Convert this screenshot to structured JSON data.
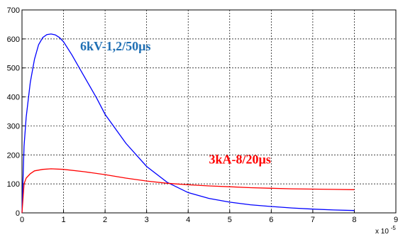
{
  "chart_data": {
    "type": "line",
    "xlim": [
      0,
      9
    ],
    "ylim": [
      0,
      700
    ],
    "x_ticks": [
      0,
      1,
      2,
      3,
      4,
      5,
      6,
      7,
      8,
      9
    ],
    "y_ticks": [
      0,
      100,
      200,
      300,
      400,
      500,
      600,
      700
    ],
    "x_tick_labels": [
      "0",
      "1",
      "2",
      "3",
      "4",
      "5",
      "6",
      "7",
      "8",
      "9"
    ],
    "y_tick_labels": [
      "0",
      "100",
      "200",
      "300",
      "400",
      "500",
      "600",
      "700"
    ],
    "x_multiplier_base": "x 10",
    "x_multiplier_exponent": "-5",
    "grid": true,
    "series": [
      {
        "color": "#0000ff",
        "x": [
          0,
          0.05,
          0.1,
          0.2,
          0.3,
          0.4,
          0.5,
          0.6,
          0.7,
          0.8,
          0.9,
          1.0,
          1.2,
          1.4,
          1.6,
          1.8,
          2.0,
          2.5,
          3.0,
          3.5,
          4.0,
          4.5,
          5.0,
          5.5,
          6.0,
          6.5,
          7.0,
          7.5,
          8.0
        ],
        "y": [
          0,
          230,
          330,
          450,
          530,
          580,
          605,
          615,
          617,
          614,
          605,
          590,
          545,
          495,
          445,
          395,
          340,
          240,
          160,
          105,
          70,
          50,
          37,
          28,
          22,
          17,
          13,
          10,
          8
        ]
      },
      {
        "color": "#ff0000",
        "x": [
          0,
          0.05,
          0.1,
          0.2,
          0.3,
          0.5,
          0.7,
          1.0,
          1.5,
          2.0,
          2.5,
          3.0,
          3.5,
          4.0,
          4.5,
          5.0,
          5.5,
          6.0,
          6.5,
          7.0,
          7.5,
          8.0
        ],
        "y": [
          0,
          100,
          120,
          135,
          145,
          150,
          152,
          150,
          142,
          132,
          120,
          110,
          102,
          97,
          93,
          90,
          87,
          85,
          83,
          82,
          81,
          80
        ]
      }
    ],
    "annotations": [
      {
        "text": "6kV-1,2/50µs",
        "color": "#1f6fb4",
        "x": 1.4,
        "y": 560
      },
      {
        "text": "3kA-8/20µs",
        "color": "#ff0000",
        "x": 4.5,
        "y": 170
      }
    ]
  }
}
